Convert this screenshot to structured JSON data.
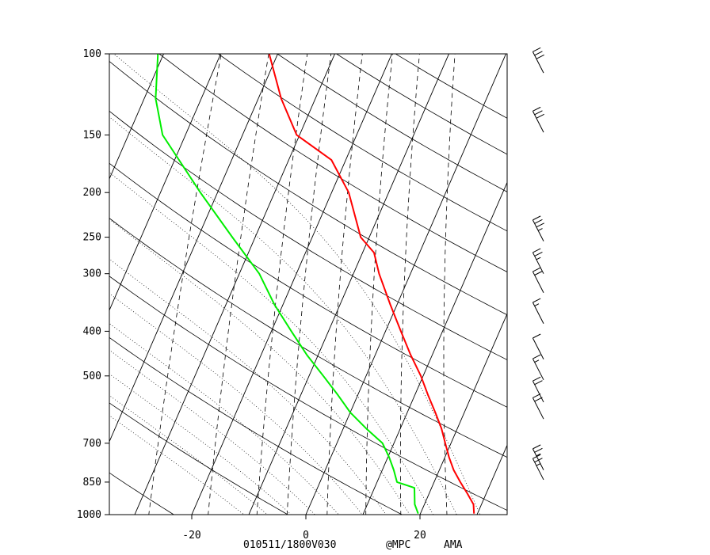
{
  "chart_data": {
    "type": "line",
    "diagram": "skew-t log-p",
    "title": "",
    "footer": {
      "id": "010511/1800V030",
      "source": "@MPC",
      "station": "AMA"
    },
    "pressure_ticks": [
      "100",
      "150",
      "200",
      "250",
      "300",
      "400",
      "500",
      "700",
      "850",
      "1000"
    ],
    "temperature_ticks": [
      "-20",
      "0",
      "20"
    ],
    "axis_ranges": {
      "pressure_hpa": [
        1000,
        100
      ],
      "temperature_c_at_1000hpa": [
        -34,
        35
      ]
    },
    "temperature_profile": {
      "color": "#ff0000",
      "points": [
        [
          995,
          29.4
        ],
        [
          950,
          28.6
        ],
        [
          900,
          26.7
        ],
        [
          850,
          24.6
        ],
        [
          800,
          22.5
        ],
        [
          750,
          20.7
        ],
        [
          700,
          19.0
        ],
        [
          650,
          17.2
        ],
        [
          600,
          14.9
        ],
        [
          550,
          12.3
        ],
        [
          500,
          9.6
        ],
        [
          450,
          6.2
        ],
        [
          400,
          2.7
        ],
        [
          350,
          -1.2
        ],
        [
          300,
          -5.5
        ],
        [
          270,
          -8.0
        ],
        [
          250,
          -11.5
        ],
        [
          200,
          -17.0
        ],
        [
          170,
          -22.5
        ],
        [
          150,
          -30.5
        ],
        [
          125,
          -36.0
        ],
        [
          100,
          -41.5
        ]
      ]
    },
    "dewpoint_profile": {
      "color": "#00ee00",
      "points": [
        [
          995,
          19.6
        ],
        [
          950,
          18.3
        ],
        [
          875,
          17.0
        ],
        [
          850,
          13.5
        ],
        [
          800,
          12.0
        ],
        [
          750,
          10.2
        ],
        [
          700,
          8.0
        ],
        [
          650,
          4.0
        ],
        [
          600,
          0.0
        ],
        [
          550,
          -3.5
        ],
        [
          500,
          -7.5
        ],
        [
          450,
          -12.0
        ],
        [
          400,
          -16.5
        ],
        [
          350,
          -21.5
        ],
        [
          300,
          -26.5
        ],
        [
          250,
          -34.0
        ],
        [
          200,
          -43.0
        ],
        [
          150,
          -54.0
        ],
        [
          125,
          -58.0
        ],
        [
          100,
          -61.0
        ]
      ]
    },
    "wind_barbs": [
      {
        "p": 110,
        "speed_kt": 30
      },
      {
        "p": 148,
        "speed_kt": 30
      },
      {
        "p": 255,
        "speed_kt": 35
      },
      {
        "p": 300,
        "speed_kt": 25
      },
      {
        "p": 330,
        "speed_kt": 20
      },
      {
        "p": 385,
        "speed_kt": 15
      },
      {
        "p": 460,
        "speed_kt": 10
      },
      {
        "p": 510,
        "speed_kt": 15
      },
      {
        "p": 570,
        "speed_kt": 20
      },
      {
        "p": 620,
        "speed_kt": 20
      },
      {
        "p": 800,
        "speed_kt": 25
      },
      {
        "p": 840,
        "speed_kt": 25
      }
    ],
    "grid": true,
    "isotherms_c": [
      -130,
      -120,
      -110,
      -100,
      -90,
      -80,
      -70,
      -60,
      -50,
      -40,
      -30,
      -20,
      -10,
      0,
      10,
      20,
      30,
      40
    ],
    "dry_adiabats_theta_k": [
      230,
      250,
      270,
      290,
      310,
      330,
      350,
      370,
      390,
      410,
      430,
      450,
      470,
      490
    ],
    "moist_adiabats_c": [
      -8,
      -4,
      0,
      4,
      8,
      12,
      16,
      20,
      24,
      28,
      32
    ],
    "mixing_ratios_gkg": [
      0.4,
      1,
      2,
      3,
      5,
      8,
      12,
      20
    ]
  }
}
